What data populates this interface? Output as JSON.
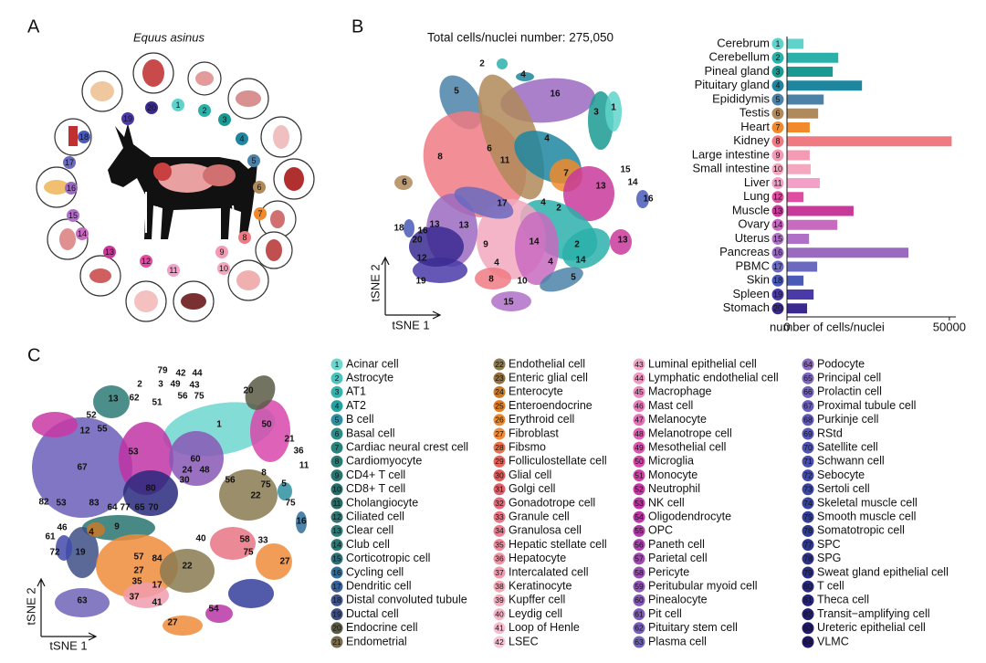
{
  "panels": {
    "a": {
      "letter": "A",
      "title": "Equus asinus"
    },
    "b": {
      "letter": "B",
      "title": "Total cells/nuclei number: 275,050",
      "x_axis": "tSNE 1",
      "y_axis": "tSNE 2",
      "cluster_labels": [
        2,
        4,
        5,
        16,
        3,
        1,
        4,
        6,
        11,
        8,
        7,
        15,
        13,
        14,
        6,
        16,
        17,
        4,
        2,
        13,
        13,
        16,
        18,
        20,
        9,
        12,
        14,
        2,
        4,
        14,
        13,
        19,
        8,
        10,
        4,
        5,
        15
      ]
    },
    "c": {
      "letter": "C",
      "x_axis": "tSNE 1",
      "y_axis": "tSNE 2",
      "cluster_labels": [
        79,
        42,
        44,
        49,
        43,
        56,
        75,
        20,
        2,
        3,
        13,
        62,
        51,
        52,
        12,
        55,
        1,
        50,
        21,
        36,
        11,
        53,
        60,
        24,
        48,
        30,
        67,
        80,
        56,
        8,
        75,
        22,
        5,
        75,
        16,
        82,
        53,
        83,
        64,
        77,
        65,
        70,
        9,
        4,
        46,
        61,
        72,
        19,
        57,
        84,
        27,
        22,
        40,
        58,
        33,
        27,
        35,
        17,
        63,
        37,
        41,
        54,
        27,
        75
      ],
      "cell_types": {
        "ids": [
          1,
          2,
          3,
          4,
          5,
          6,
          7,
          8,
          9,
          10,
          11,
          12,
          13,
          14,
          15,
          16,
          17,
          18,
          19,
          20,
          21,
          22,
          23,
          24,
          25,
          26,
          27,
          28,
          29,
          30,
          31,
          32,
          33,
          34,
          35,
          36,
          37,
          38,
          39,
          40,
          41,
          42,
          43,
          44,
          45,
          46,
          47,
          48,
          49,
          50,
          51,
          52,
          53,
          54,
          55,
          56,
          57,
          58,
          59,
          60,
          61,
          62,
          63,
          64,
          65,
          66,
          67,
          68,
          69,
          70,
          71,
          72,
          73,
          74,
          75,
          76,
          77,
          78,
          79,
          80,
          81,
          82,
          83,
          84
        ],
        "names": [
          "Acinar cell",
          "Astrocyte",
          "AT1",
          "AT2",
          "B cell",
          "Basal cell",
          "Cardiac neural crest cell",
          "Cardiomyocyte",
          "CD4+ T cell",
          "CD8+ T cell",
          "Cholangiocyte",
          "Ciliated cell",
          "Clear cell",
          "Club cell",
          "Corticotropic cell",
          "Cycling cell",
          "Dendritic cell",
          "Distal convoluted tubule",
          "Ductal cell",
          "Endocrine cell",
          "Endometrial",
          "Endothelial cell",
          "Enteric glial cell",
          "Enterocyte",
          "Enteroendocrine",
          "Erythroid cell",
          "Fibroblast",
          "Fibsmo",
          "Folliculostellate cell",
          "Glial cell",
          "Golgi cell",
          "Gonadotrope cell",
          "Granule cell",
          "Granulosa cell",
          "Hepatic stellate cell",
          "Hepatocyte",
          "Intercalated cell",
          "Keratinocyte",
          "Kupffer cell",
          "Leydig cell",
          "Loop of Henle",
          "LSEC",
          "Luminal epithelial cell",
          "Lymphatic endothelial cell",
          "Macrophage",
          "Mast cell",
          "Melanocyte",
          "Melanotrope cell",
          "Mesothelial cell",
          "Microglia",
          "Monocyte",
          "Neutrophil",
          "NK cell",
          "Oligodendrocyte",
          "OPC",
          "Paneth cell",
          "Parietal cell",
          "Pericyte",
          "Peritubular myoid cell",
          "Pinealocyte",
          "Pit cell",
          "Pituitary stem cell",
          "Plasma cell",
          "Podocyte",
          "Principal cell",
          "Prolactin cell",
          "Proximal tubule cell",
          "Purkinje cell",
          "RStd",
          "Satellite cell",
          "Schwann cell",
          "Sebocyte",
          "Sertoli cell",
          "Skeletal muscle cell",
          "Smooth muscle cell",
          "Somatotropic cell",
          "SPC",
          "SPG",
          "Sweat gland epithelial cell",
          "T cell",
          "Theca cell",
          "Transit−amplifying cell",
          "Ureteric epithelial cell",
          "VLMC"
        ],
        "colors": [
          "#6fd6cf",
          "#4cc4bd",
          "#34b3ad",
          "#25a1a0",
          "#2e8fa0",
          "#2b8c88",
          "#2a827c",
          "#2a7a74",
          "#287470",
          "#286e6a",
          "#2a6a64",
          "#2f7470",
          "#2d7b76",
          "#2b7772",
          "#2c6f7a",
          "#2f6e9a",
          "#3a5f98",
          "#3f5590",
          "#3e4f86",
          "#5b5b45",
          "#786c4e",
          "#8a7a50",
          "#93703e",
          "#c97a2a",
          "#e07e28",
          "#e98a30",
          "#f08c3a",
          "#e8724a",
          "#e8645a",
          "#e05a5a",
          "#e0606a",
          "#e56a7a",
          "#e87484",
          "#ea7e90",
          "#ec8a9a",
          "#ee94a4",
          "#f09cae",
          "#f2a6b6",
          "#f3aebe",
          "#f4b6c6",
          "#f6bece",
          "#f8c6d6",
          "#f4a6c8",
          "#f098c4",
          "#ec8ac0",
          "#e87cbc",
          "#e46eb8",
          "#e060b4",
          "#dc52b0",
          "#d848ac",
          "#d040a8",
          "#c838a4",
          "#c034a4",
          "#b836a6",
          "#b03ca8",
          "#a844ac",
          "#a04aae",
          "#9850b2",
          "#9054b4",
          "#8858b6",
          "#805cb8",
          "#7860b8",
          "#7064b8",
          "#8a6ac0",
          "#7e66be",
          "#7462bc",
          "#6a5eba",
          "#605ab8",
          "#5856b6",
          "#5052b2",
          "#484eae",
          "#424aaa",
          "#3c46a6",
          "#3842a0",
          "#343e9a",
          "#303a94",
          "#2e368e",
          "#2c3288",
          "#2a2e82",
          "#28297c",
          "#262476",
          "#241f70",
          "#221a6a",
          "#20166a"
        ]
      }
    }
  },
  "chart_data": {
    "type": "bar",
    "orientation": "horizontal",
    "categories": [
      "Cerebrum",
      "Cerebellum",
      "Pineal gland",
      "Pituitary gland",
      "Epididymis",
      "Testis",
      "Heart",
      "Kidney",
      "Large intestine",
      "Small intestine",
      "Liver",
      "Lung",
      "Muscle",
      "Ovary",
      "Uterus",
      "Pancreas",
      "PBMC",
      "Skin",
      "Spleen",
      "Stomach"
    ],
    "ids": [
      1,
      2,
      3,
      4,
      5,
      6,
      7,
      8,
      9,
      10,
      11,
      12,
      13,
      14,
      15,
      16,
      17,
      18,
      19,
      20
    ],
    "values": [
      5100,
      15800,
      14100,
      23100,
      11300,
      9600,
      7000,
      50700,
      7000,
      7300,
      10100,
      5100,
      20500,
      15500,
      6800,
      37400,
      9300,
      5100,
      8200,
      6200
    ],
    "colors": [
      "#5fd3cb",
      "#2bb0aa",
      "#1a9a92",
      "#1f86a0",
      "#4c82a8",
      "#b08a5a",
      "#f08a2a",
      "#f07a82",
      "#f59ab4",
      "#f3a8c0",
      "#f2a0c8",
      "#e04ca0",
      "#c83a9a",
      "#c86ac0",
      "#b070c8",
      "#9a6ac0",
      "#6a6ac0",
      "#4a5ab8",
      "#4a3aa8",
      "#3a2a90"
    ],
    "xlabel": "number of cells/nuclei",
    "xlim": [
      0,
      52000
    ],
    "xticks": [
      0,
      50000
    ]
  }
}
